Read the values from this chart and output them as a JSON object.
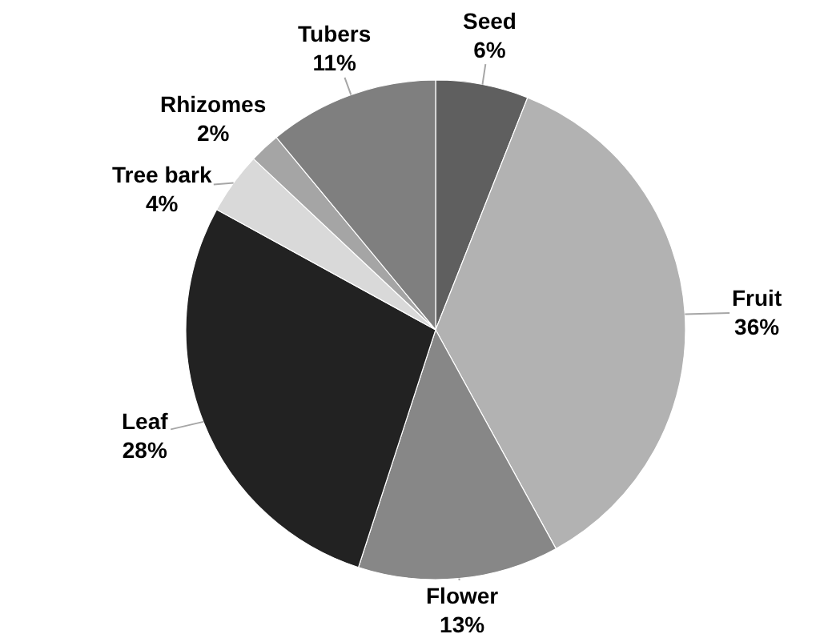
{
  "chart_data": {
    "type": "pie",
    "categories": [
      "Seed",
      "Fruit",
      "Flower",
      "Leaf",
      "Tree bark",
      "Rhizomes",
      "Tubers"
    ],
    "values": [
      6,
      36,
      13,
      28,
      4,
      2,
      11
    ],
    "value_labels": [
      "6%",
      "36%",
      "13%",
      "28%",
      "4%",
      "2%",
      "11%"
    ],
    "colors": [
      "#5f5f5f",
      "#b2b2b2",
      "#878787",
      "#222222",
      "#d9d9d9",
      "#a5a5a5",
      "#7f7f7f"
    ]
  }
}
